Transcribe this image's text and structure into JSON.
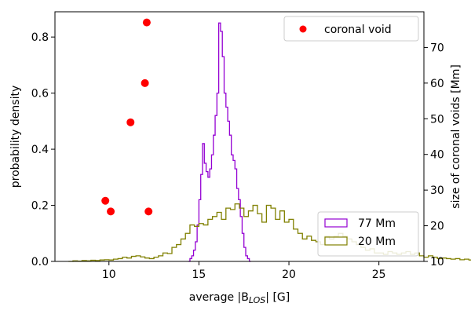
{
  "chart_data": {
    "type": "histogram",
    "title": "",
    "xlabel": "average |B",
    "xlabel_sub": "LOS",
    "xlabel_tail": "| [G]",
    "ylabel_left": "probability density",
    "ylabel_right": "size of coronal voids [Mm]",
    "xlim": [
      7,
      27.5
    ],
    "ylim_left": [
      0,
      0.89
    ],
    "ylim_right": [
      10,
      80
    ],
    "xticks": [
      10,
      15,
      20,
      25
    ],
    "yticks_left": [
      0.0,
      0.2,
      0.4,
      0.6,
      0.8
    ],
    "yticks_right": [
      10,
      20,
      30,
      40,
      50,
      60,
      70
    ],
    "grid": false,
    "series": [
      {
        "name": "77 Mm",
        "kind": "step",
        "color": "#9400d3",
        "bin_width": 0.1,
        "x_start": 14.4,
        "values": [
          0.0,
          0.01,
          0.02,
          0.04,
          0.07,
          0.13,
          0.22,
          0.31,
          0.42,
          0.35,
          0.32,
          0.3,
          0.33,
          0.38,
          0.45,
          0.52,
          0.6,
          0.85,
          0.82,
          0.73,
          0.6,
          0.55,
          0.5,
          0.45,
          0.38,
          0.36,
          0.33,
          0.26,
          0.22,
          0.16,
          0.1,
          0.05,
          0.02,
          0.01,
          0.0
        ]
      },
      {
        "name": "20 Mm",
        "kind": "step",
        "color": "#808000",
        "bin_width": 0.25,
        "x_start": 7.75,
        "values": [
          0.0,
          0.002,
          0.001,
          0.003,
          0.002,
          0.004,
          0.003,
          0.005,
          0.006,
          0.005,
          0.008,
          0.01,
          0.015,
          0.012,
          0.018,
          0.02,
          0.016,
          0.012,
          0.01,
          0.015,
          0.02,
          0.03,
          0.028,
          0.05,
          0.06,
          0.08,
          0.1,
          0.13,
          0.125,
          0.135,
          0.13,
          0.15,
          0.16,
          0.175,
          0.15,
          0.19,
          0.185,
          0.205,
          0.19,
          0.16,
          0.18,
          0.2,
          0.17,
          0.14,
          0.2,
          0.19,
          0.15,
          0.18,
          0.14,
          0.15,
          0.115,
          0.1,
          0.08,
          0.09,
          0.075,
          0.07,
          0.06,
          0.09,
          0.08,
          0.09,
          0.1,
          0.09,
          0.08,
          0.07,
          0.06,
          0.05,
          0.04,
          0.045,
          0.03,
          0.03,
          0.025,
          0.035,
          0.03,
          0.025,
          0.03,
          0.035,
          0.025,
          0.03,
          0.02,
          0.015,
          0.02,
          0.015,
          0.01,
          0.012,
          0.01,
          0.008,
          0.01,
          0.006,
          0.008,
          0.005,
          0.004,
          0.006,
          0.004,
          0.003,
          0.003,
          0.002,
          0.002,
          0.002,
          0.001,
          0.001,
          0.0
        ]
      }
    ],
    "scatter": {
      "name": "coronal void",
      "color": "#ff0000",
      "axis": "right",
      "points": [
        {
          "x": 12.1,
          "y": 77
        },
        {
          "x": 12.0,
          "y": 60
        },
        {
          "x": 11.2,
          "y": 49
        },
        {
          "x": 9.8,
          "y": 27
        },
        {
          "x": 10.1,
          "y": 24
        },
        {
          "x": 12.2,
          "y": 24
        }
      ]
    },
    "legends": [
      {
        "position": "upper-right",
        "entries": [
          "coronal void"
        ]
      },
      {
        "position": "lower-right",
        "entries": [
          "77 Mm",
          "20 Mm"
        ]
      }
    ]
  }
}
